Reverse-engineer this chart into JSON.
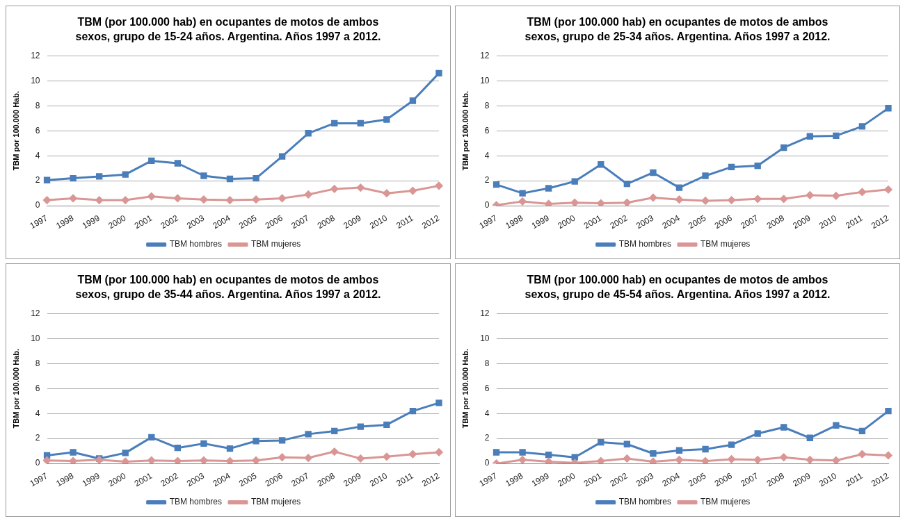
{
  "chart_data": [
    {
      "type": "line",
      "title": "TBM (por 100.000 hab) en ocupantes de motos de ambos sexos, grupo de 15-24 años. Argentina.  Años 1997 a 2012.",
      "ylabel": "TBM por 100.000 Hab.",
      "categories": [
        "1997",
        "1998",
        "1999",
        "2000",
        "2001",
        "2002",
        "2003",
        "2004",
        "2005",
        "2006",
        "2007",
        "2008",
        "2009",
        "2010",
        "2011",
        "2012"
      ],
      "ylim": [
        0,
        12
      ],
      "yticks": [
        0,
        2,
        4,
        6,
        8,
        10,
        12
      ],
      "grid": "y",
      "legend": "bottom",
      "series": [
        {
          "name": "TBM hombres",
          "color": "#4a7ebb",
          "marker": "square",
          "values": [
            2.05,
            2.2,
            2.35,
            2.5,
            3.6,
            3.4,
            2.4,
            2.15,
            2.2,
            3.95,
            5.8,
            6.6,
            6.6,
            6.9,
            8.4,
            10.6
          ]
        },
        {
          "name": "TBM mujeres",
          "color": "#d99694",
          "marker": "diamond",
          "values": [
            0.45,
            0.6,
            0.45,
            0.45,
            0.75,
            0.6,
            0.5,
            0.45,
            0.5,
            0.6,
            0.9,
            1.35,
            1.45,
            1.0,
            1.2,
            1.6
          ]
        }
      ]
    },
    {
      "type": "line",
      "title": "TBM (por 100.000 hab) en ocupantes de motos de ambos sexos, grupo de 25-34 años. Argentina. Años 1997 a 2012.",
      "ylabel": "TBM por 100.000 Hab.",
      "categories": [
        "1997",
        "1998",
        "1999",
        "2000",
        "2001",
        "2002",
        "2003",
        "2004",
        "2005",
        "2006",
        "2007",
        "2008",
        "2009",
        "2010",
        "2011",
        "2012"
      ],
      "ylim": [
        0,
        12
      ],
      "yticks": [
        0,
        2,
        4,
        6,
        8,
        10,
        12
      ],
      "grid": "y",
      "legend": "bottom",
      "series": [
        {
          "name": "TBM hombres",
          "color": "#4a7ebb",
          "marker": "square",
          "values": [
            1.7,
            1.0,
            1.4,
            1.95,
            3.3,
            1.75,
            2.65,
            1.45,
            2.4,
            3.1,
            3.2,
            4.65,
            5.55,
            5.6,
            6.35,
            7.8
          ]
        },
        {
          "name": "TBM mujeres",
          "color": "#d99694",
          "marker": "diamond",
          "values": [
            0.05,
            0.35,
            0.15,
            0.25,
            0.2,
            0.25,
            0.65,
            0.5,
            0.4,
            0.45,
            0.55,
            0.55,
            0.85,
            0.8,
            1.1,
            1.3
          ]
        }
      ]
    },
    {
      "type": "line",
      "title": "TBM (por 100.000 hab) en ocupantes de motos de ambos sexos, grupo de 35-44 años. Argentina. Años 1997 a 2012.",
      "ylabel": "TBM por 100.000 Hab.",
      "categories": [
        "1997",
        "1998",
        "1999",
        "2000",
        "2001",
        "2002",
        "2003",
        "2004",
        "2005",
        "2006",
        "2007",
        "2008",
        "2009",
        "2010",
        "2011",
        "2012"
      ],
      "ylim": [
        0,
        12
      ],
      "yticks": [
        0,
        2,
        4,
        6,
        8,
        10,
        12
      ],
      "grid": "y",
      "legend": "bottom",
      "series": [
        {
          "name": "TBM hombres",
          "color": "#4a7ebb",
          "marker": "square",
          "values": [
            0.65,
            0.9,
            0.4,
            0.85,
            2.1,
            1.25,
            1.6,
            1.2,
            1.8,
            1.85,
            2.35,
            2.6,
            2.95,
            3.1,
            4.2,
            4.85
          ]
        },
        {
          "name": "TBM mujeres",
          "color": "#d99694",
          "marker": "diamond",
          "values": [
            0.25,
            0.2,
            0.3,
            0.15,
            0.25,
            0.2,
            0.25,
            0.2,
            0.25,
            0.5,
            0.45,
            0.95,
            0.4,
            0.55,
            0.75,
            0.9
          ]
        }
      ]
    },
    {
      "type": "line",
      "title": "TBM (por 100.000 hab) en ocupantes de motos de ambos sexos, grupo de 45-54 años. Argentina. Años 1997 a 2012.",
      "ylabel": "TBM por 100.000 Hab.",
      "categories": [
        "1997",
        "1998",
        "1999",
        "2000",
        "2001",
        "2002",
        "2003",
        "2004",
        "2005",
        "2006",
        "2007",
        "2008",
        "2009",
        "2010",
        "2011",
        "2012"
      ],
      "ylim": [
        0,
        12
      ],
      "yticks": [
        0,
        2,
        4,
        6,
        8,
        10,
        12
      ],
      "grid": "y",
      "legend": "bottom",
      "series": [
        {
          "name": "TBM hombres",
          "color": "#4a7ebb",
          "marker": "square",
          "values": [
            0.9,
            0.9,
            0.7,
            0.5,
            1.7,
            1.55,
            0.8,
            1.05,
            1.15,
            1.5,
            2.4,
            2.9,
            2.05,
            3.05,
            2.6,
            4.2
          ]
        },
        {
          "name": "TBM mujeres",
          "color": "#d99694",
          "marker": "diamond",
          "values": [
            0,
            0.3,
            0.15,
            0.05,
            0.2,
            0.4,
            0.15,
            0.3,
            0.2,
            0.35,
            0.3,
            0.5,
            0.3,
            0.25,
            0.75,
            0.65
          ]
        }
      ]
    }
  ]
}
